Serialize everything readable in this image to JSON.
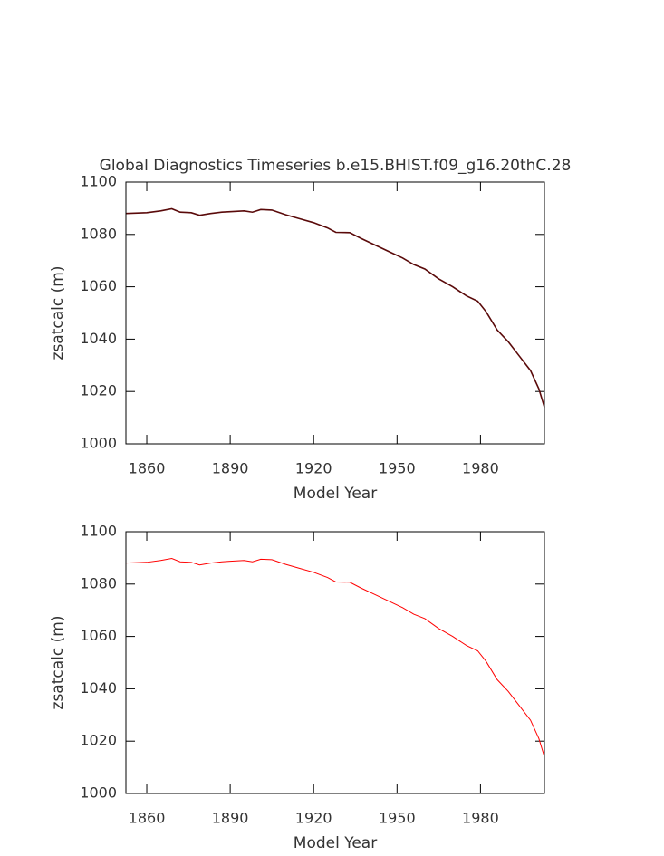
{
  "chart_data": [
    {
      "type": "line",
      "title": "Global Diagnostics Timeseries b.e15.BHIST.f09_g16.20thC.28",
      "xlabel": "Model Year",
      "ylabel": "zsatcalc (m)",
      "x": [
        1852.5,
        1860,
        1865,
        1869,
        1872,
        1876,
        1879,
        1883,
        1887,
        1890,
        1895,
        1898,
        1901,
        1905,
        1910,
        1915,
        1920,
        1925,
        1928,
        1933,
        1937,
        1942,
        1947,
        1952,
        1956,
        1960,
        1965,
        1970,
        1975,
        1979,
        1982,
        1986,
        1990,
        1994,
        1998,
        2001,
        2003
      ],
      "series": [
        {
          "name": "zsatcalc",
          "color": "#5a0a0a",
          "values": [
            1088,
            1088.3,
            1089,
            1089.8,
            1088.5,
            1088.3,
            1087.3,
            1088,
            1088.5,
            1088.7,
            1089,
            1088.5,
            1089.5,
            1089.3,
            1087.5,
            1086,
            1084.5,
            1082.5,
            1080.8,
            1080.7,
            1078.5,
            1076,
            1073.5,
            1071,
            1068.5,
            1066.8,
            1063,
            1060,
            1056.5,
            1054.5,
            1050.5,
            1043.5,
            1039,
            1033.5,
            1028,
            1021,
            1014
          ]
        }
      ],
      "xlim": [
        1852.5,
        2003
      ],
      "xticks": [
        1860,
        1890,
        1920,
        1950,
        1980
      ],
      "ylim": [
        1000,
        1100
      ],
      "yticks": [
        1000,
        1020,
        1040,
        1060,
        1080,
        1100
      ]
    },
    {
      "type": "line",
      "xlabel": "Model Year",
      "ylabel": "zsatcalc (m)",
      "x": [
        1852.5,
        1860,
        1865,
        1869,
        1872,
        1876,
        1879,
        1883,
        1887,
        1890,
        1895,
        1898,
        1901,
        1905,
        1910,
        1915,
        1920,
        1925,
        1928,
        1933,
        1937,
        1942,
        1947,
        1952,
        1956,
        1960,
        1965,
        1970,
        1975,
        1979,
        1982,
        1986,
        1990,
        1994,
        1998,
        2001,
        2003
      ],
      "series": [
        {
          "name": "zsatcalc",
          "color": "#ff0000",
          "values": [
            1088,
            1088.3,
            1089,
            1089.8,
            1088.5,
            1088.3,
            1087.3,
            1088,
            1088.5,
            1088.7,
            1089,
            1088.5,
            1089.5,
            1089.3,
            1087.5,
            1086,
            1084.5,
            1082.5,
            1080.8,
            1080.7,
            1078.5,
            1076,
            1073.5,
            1071,
            1068.5,
            1066.8,
            1063,
            1060,
            1056.5,
            1054.5,
            1050.5,
            1043.5,
            1039,
            1033.5,
            1028,
            1021,
            1014
          ]
        }
      ],
      "xlim": [
        1852.5,
        2003
      ],
      "xticks": [
        1860,
        1890,
        1920,
        1950,
        1980
      ],
      "ylim": [
        1000,
        1100
      ],
      "yticks": [
        1000,
        1020,
        1040,
        1060,
        1080,
        1100
      ]
    }
  ]
}
